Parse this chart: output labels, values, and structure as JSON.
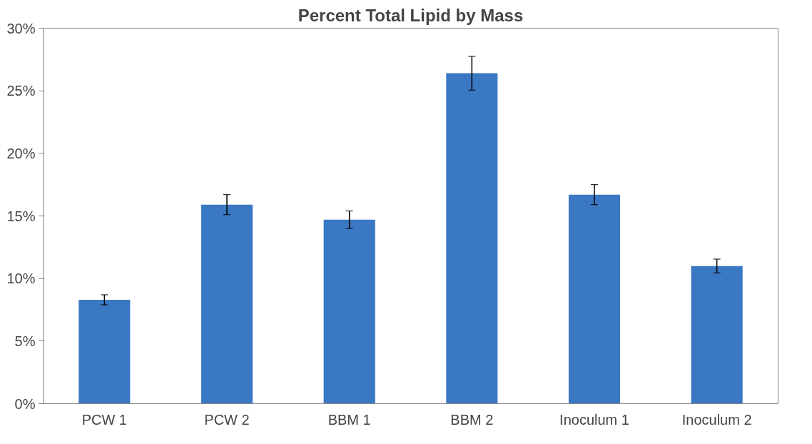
{
  "chart_data": {
    "type": "bar",
    "title": "Percent Total Lipid by Mass",
    "categories": [
      "PCW 1",
      "PCW 2",
      "BBM 1",
      "BBM 2",
      "Inoculum 1",
      "Inoculum 2"
    ],
    "values": [
      8.3,
      15.9,
      14.7,
      26.4,
      16.7,
      11.0
    ],
    "errors": [
      0.4,
      0.8,
      0.7,
      1.35,
      0.8,
      0.55
    ],
    "color": "#3a78c3",
    "ylim": [
      0,
      30
    ],
    "yticks": [
      {
        "value": 0,
        "label": "0%"
      },
      {
        "value": 5,
        "label": "5%"
      },
      {
        "value": 10,
        "label": "10%"
      },
      {
        "value": 15,
        "label": "15%"
      },
      {
        "value": 20,
        "label": "20%"
      },
      {
        "value": 25,
        "label": "25%"
      },
      {
        "value": 30,
        "label": "30%"
      }
    ],
    "grid": false
  }
}
